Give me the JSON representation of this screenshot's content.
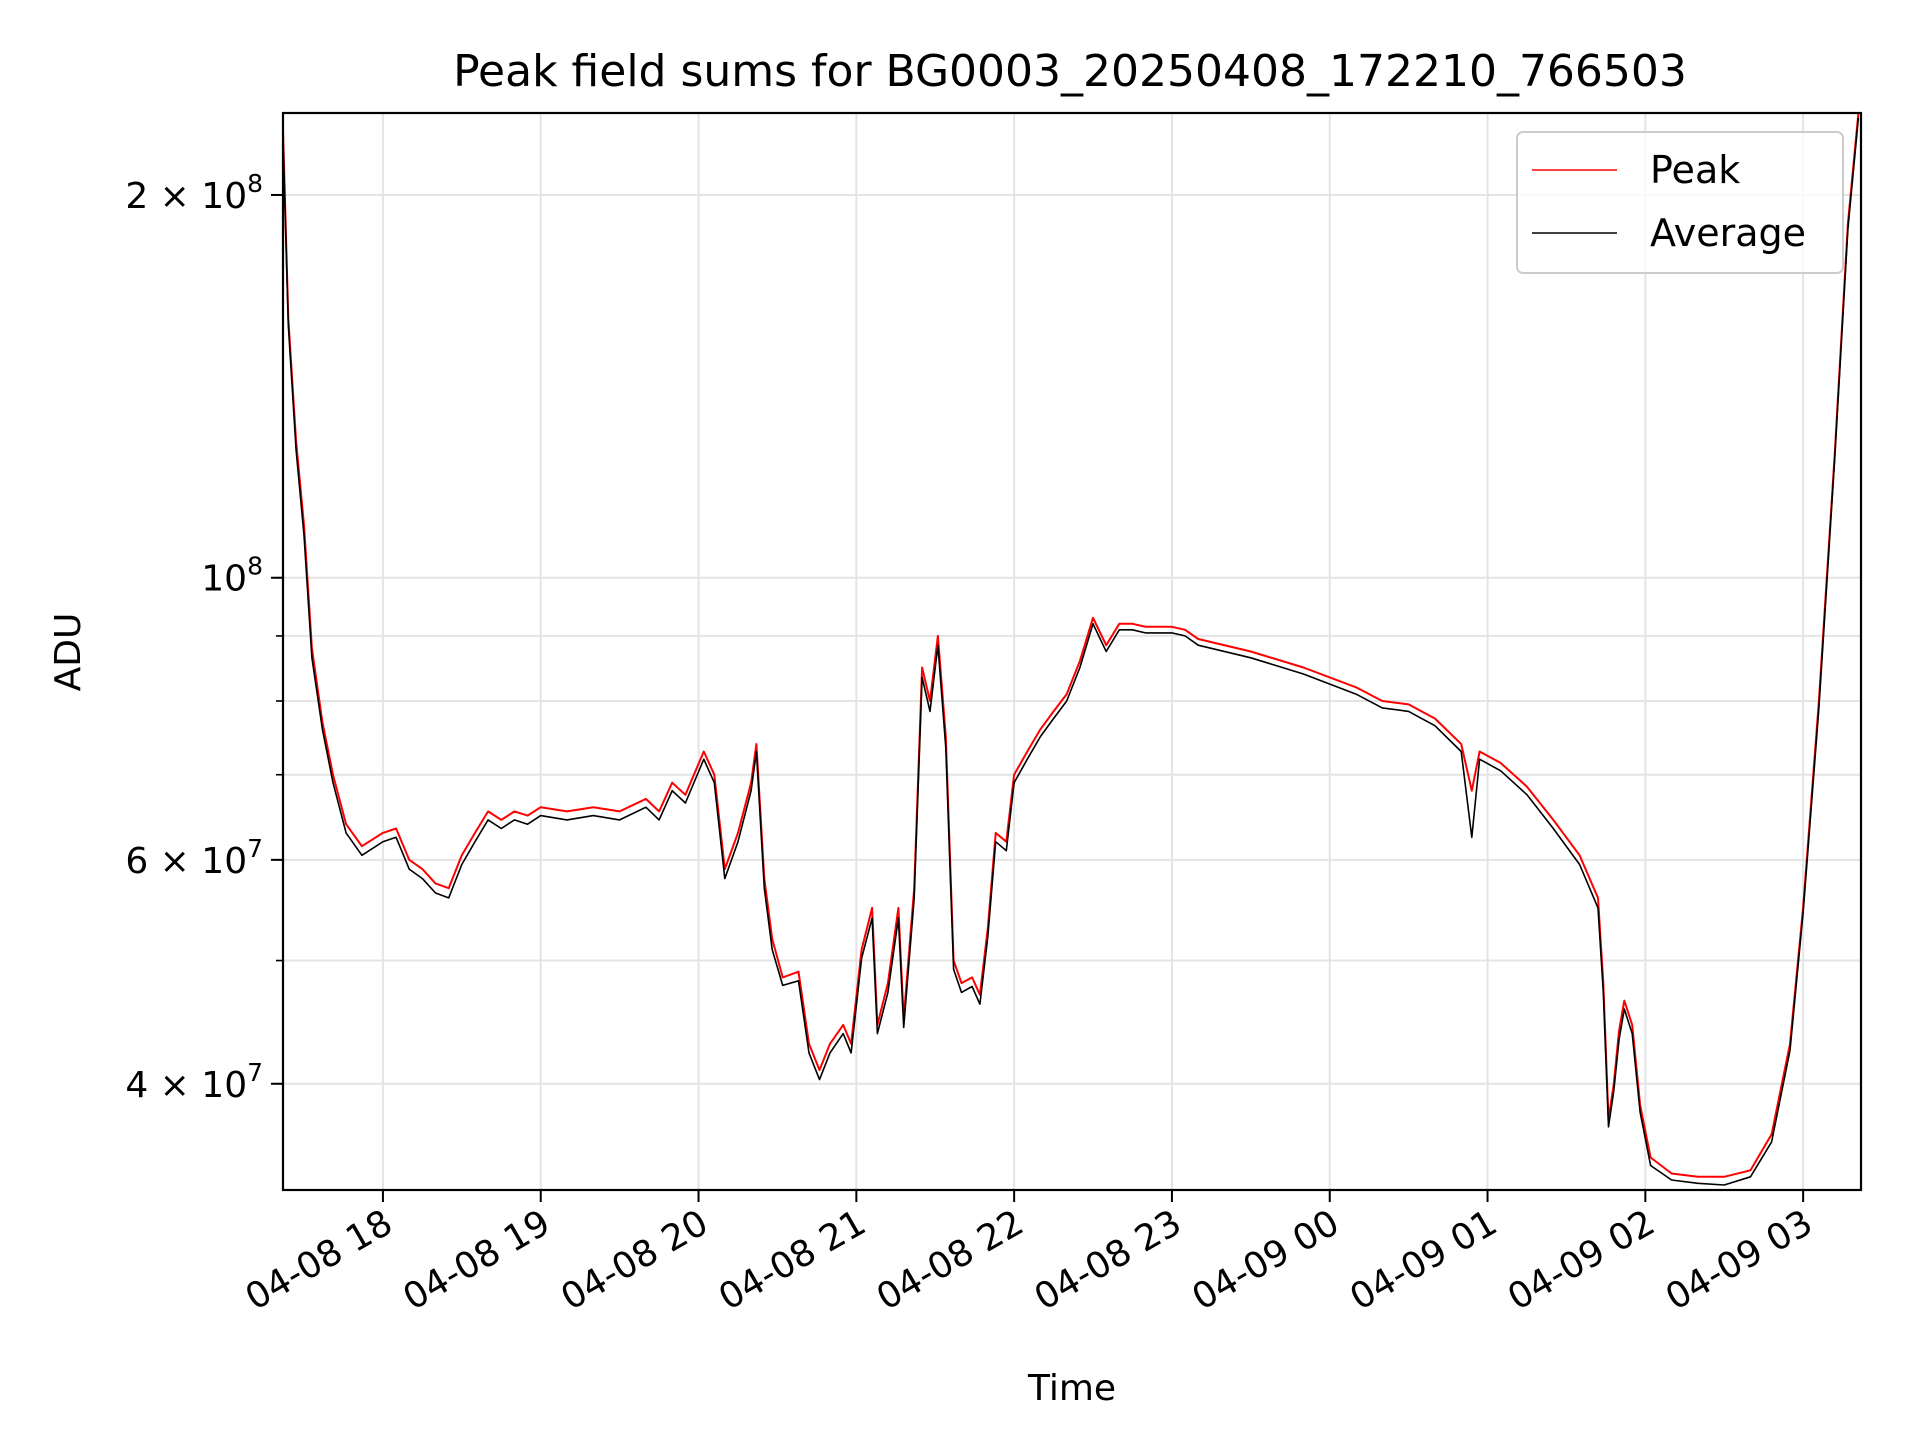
{
  "chart_data": {
    "type": "line",
    "title": "Peak field sums for BG0003_20250408_172210_766503",
    "xlabel": "Time",
    "ylabel": "ADU",
    "y_scale": "log",
    "ylim": [
      33000000,
      232000000
    ],
    "xlim": [
      "2025-04-08 17:22",
      "2025-04-09 03:22"
    ],
    "grid": true,
    "legend_position": "top-right",
    "y_major_ticks": [
      {
        "value": 40000000,
        "mant": "4",
        "exp": "7"
      },
      {
        "value": 60000000,
        "mant": "6",
        "exp": "7"
      },
      {
        "value": 100000000,
        "mant": "",
        "exp": "8"
      },
      {
        "value": 200000000,
        "mant": "2",
        "exp": "8"
      }
    ],
    "x_ticks": [
      {
        "value": "2025-04-08 18:00",
        "label": "04-08 18"
      },
      {
        "value": "2025-04-08 19:00",
        "label": "04-08 19"
      },
      {
        "value": "2025-04-08 20:00",
        "label": "04-08 20"
      },
      {
        "value": "2025-04-08 21:00",
        "label": "04-08 21"
      },
      {
        "value": "2025-04-08 22:00",
        "label": "04-08 22"
      },
      {
        "value": "2025-04-08 23:00",
        "label": "04-08 23"
      },
      {
        "value": "2025-04-09 00:00",
        "label": "04-09 00"
      },
      {
        "value": "2025-04-09 01:00",
        "label": "04-09 01"
      },
      {
        "value": "2025-04-09 02:00",
        "label": "04-09 02"
      },
      {
        "value": "2025-04-09 03:00",
        "label": "04-09 03"
      }
    ],
    "series": [
      {
        "name": "Peak",
        "color": "#ff0000",
        "points": [
          [
            "2025-04-08 17:22",
            225000000
          ],
          [
            "2025-04-08 17:24",
            160000000
          ],
          [
            "2025-04-08 17:27",
            128000000
          ],
          [
            "2025-04-08 17:30",
            110000000
          ],
          [
            "2025-04-08 17:33",
            88000000
          ],
          [
            "2025-04-08 17:37",
            77000000
          ],
          [
            "2025-04-08 17:41",
            70000000
          ],
          [
            "2025-04-08 17:46",
            64000000
          ],
          [
            "2025-04-08 17:52",
            61500000
          ],
          [
            "2025-04-08 18:00",
            63000000
          ],
          [
            "2025-04-08 18:05",
            63500000
          ],
          [
            "2025-04-08 18:10",
            60000000
          ],
          [
            "2025-04-08 18:15",
            59000000
          ],
          [
            "2025-04-08 18:20",
            57500000
          ],
          [
            "2025-04-08 18:25",
            57000000
          ],
          [
            "2025-04-08 18:30",
            60500000
          ],
          [
            "2025-04-08 18:35",
            63000000
          ],
          [
            "2025-04-08 18:40",
            65500000
          ],
          [
            "2025-04-08 18:45",
            64500000
          ],
          [
            "2025-04-08 18:50",
            65500000
          ],
          [
            "2025-04-08 18:55",
            65000000
          ],
          [
            "2025-04-08 19:00",
            66000000
          ],
          [
            "2025-04-08 19:10",
            65500000
          ],
          [
            "2025-04-08 19:20",
            66000000
          ],
          [
            "2025-04-08 19:30",
            65500000
          ],
          [
            "2025-04-08 19:40",
            67000000
          ],
          [
            "2025-04-08 19:45",
            65500000
          ],
          [
            "2025-04-08 19:50",
            69000000
          ],
          [
            "2025-04-08 19:55",
            67500000
          ],
          [
            "2025-04-08 20:02",
            73000000
          ],
          [
            "2025-04-08 20:06",
            70000000
          ],
          [
            "2025-04-08 20:10",
            59000000
          ],
          [
            "2025-04-08 20:15",
            63000000
          ],
          [
            "2025-04-08 20:20",
            69000000
          ],
          [
            "2025-04-08 20:22",
            74000000
          ],
          [
            "2025-04-08 20:25",
            58000000
          ],
          [
            "2025-04-08 20:28",
            52000000
          ],
          [
            "2025-04-08 20:32",
            48500000
          ],
          [
            "2025-04-08 20:38",
            49000000
          ],
          [
            "2025-04-08 20:42",
            43000000
          ],
          [
            "2025-04-08 20:46",
            41000000
          ],
          [
            "2025-04-08 20:50",
            43000000
          ],
          [
            "2025-04-08 20:55",
            44500000
          ],
          [
            "2025-04-08 20:58",
            43000000
          ],
          [
            "2025-04-08 21:02",
            51000000
          ],
          [
            "2025-04-08 21:06",
            55000000
          ],
          [
            "2025-04-08 21:08",
            44500000
          ],
          [
            "2025-04-08 21:12",
            48000000
          ],
          [
            "2025-04-08 21:16",
            55000000
          ],
          [
            "2025-04-08 21:18",
            45000000
          ],
          [
            "2025-04-08 21:22",
            57000000
          ],
          [
            "2025-04-08 21:25",
            85000000
          ],
          [
            "2025-04-08 21:28",
            80000000
          ],
          [
            "2025-04-08 21:31",
            90000000
          ],
          [
            "2025-04-08 21:34",
            75000000
          ],
          [
            "2025-04-08 21:37",
            50000000
          ],
          [
            "2025-04-08 21:40",
            48000000
          ],
          [
            "2025-04-08 21:44",
            48500000
          ],
          [
            "2025-04-08 21:47",
            47000000
          ],
          [
            "2025-04-08 21:50",
            53000000
          ],
          [
            "2025-04-08 21:53",
            63000000
          ],
          [
            "2025-04-08 21:57",
            62000000
          ],
          [
            "2025-04-08 22:00",
            70000000
          ],
          [
            "2025-04-08 22:05",
            73000000
          ],
          [
            "2025-04-08 22:10",
            76000000
          ],
          [
            "2025-04-08 22:15",
            78500000
          ],
          [
            "2025-04-08 22:20",
            81000000
          ],
          [
            "2025-04-08 22:25",
            86000000
          ],
          [
            "2025-04-08 22:30",
            93000000
          ],
          [
            "2025-04-08 22:35",
            88500000
          ],
          [
            "2025-04-08 22:40",
            92000000
          ],
          [
            "2025-04-08 22:45",
            92000000
          ],
          [
            "2025-04-08 22:50",
            91500000
          ],
          [
            "2025-04-08 22:55",
            91500000
          ],
          [
            "2025-04-08 23:00",
            91500000
          ],
          [
            "2025-04-08 23:05",
            91000000
          ],
          [
            "2025-04-08 23:10",
            89500000
          ],
          [
            "2025-04-08 23:30",
            87500000
          ],
          [
            "2025-04-08 23:50",
            85000000
          ],
          [
            "2025-04-09 00:10",
            82000000
          ],
          [
            "2025-04-09 00:20",
            80000000
          ],
          [
            "2025-04-09 00:30",
            79500000
          ],
          [
            "2025-04-09 00:40",
            77500000
          ],
          [
            "2025-04-09 00:50",
            74000000
          ],
          [
            "2025-04-09 00:54",
            68000000
          ],
          [
            "2025-04-09 00:57",
            73000000
          ],
          [
            "2025-04-09 01:05",
            71500000
          ],
          [
            "2025-04-09 01:15",
            68500000
          ],
          [
            "2025-04-09 01:25",
            64500000
          ],
          [
            "2025-04-09 01:35",
            60500000
          ],
          [
            "2025-04-09 01:42",
            56000000
          ],
          [
            "2025-04-09 01:44",
            48000000
          ],
          [
            "2025-04-09 01:46",
            37500000
          ],
          [
            "2025-04-09 01:48",
            40000000
          ],
          [
            "2025-04-09 01:50",
            44000000
          ],
          [
            "2025-04-09 01:52",
            46500000
          ],
          [
            "2025-04-09 01:55",
            44500000
          ],
          [
            "2025-04-09 01:58",
            38500000
          ],
          [
            "2025-04-09 02:02",
            35000000
          ],
          [
            "2025-04-09 02:10",
            34000000
          ],
          [
            "2025-04-09 02:20",
            33800000
          ],
          [
            "2025-04-09 02:30",
            33800000
          ],
          [
            "2025-04-09 02:40",
            34200000
          ],
          [
            "2025-04-09 02:48",
            36500000
          ],
          [
            "2025-04-09 02:55",
            43000000
          ],
          [
            "2025-04-09 03:00",
            55000000
          ],
          [
            "2025-04-09 03:06",
            80000000
          ],
          [
            "2025-04-09 03:12",
            125000000
          ],
          [
            "2025-04-09 03:17",
            190000000
          ],
          [
            "2025-04-09 03:21",
            232000000
          ]
        ]
      },
      {
        "name": "Average",
        "color": "#000000",
        "points": [
          [
            "2025-04-08 17:22",
            222000000
          ],
          [
            "2025-04-08 17:24",
            158000000
          ],
          [
            "2025-04-08 17:27",
            126000000
          ],
          [
            "2025-04-08 17:30",
            108000000
          ],
          [
            "2025-04-08 17:33",
            86500000
          ],
          [
            "2025-04-08 17:37",
            76000000
          ],
          [
            "2025-04-08 17:41",
            69000000
          ],
          [
            "2025-04-08 17:46",
            63000000
          ],
          [
            "2025-04-08 17:52",
            60500000
          ],
          [
            "2025-04-08 18:00",
            62000000
          ],
          [
            "2025-04-08 18:05",
            62500000
          ],
          [
            "2025-04-08 18:10",
            59000000
          ],
          [
            "2025-04-08 18:15",
            58000000
          ],
          [
            "2025-04-08 18:20",
            56500000
          ],
          [
            "2025-04-08 18:25",
            56000000
          ],
          [
            "2025-04-08 18:30",
            59500000
          ],
          [
            "2025-04-08 18:35",
            62000000
          ],
          [
            "2025-04-08 18:40",
            64500000
          ],
          [
            "2025-04-08 18:45",
            63500000
          ],
          [
            "2025-04-08 18:50",
            64500000
          ],
          [
            "2025-04-08 18:55",
            64000000
          ],
          [
            "2025-04-08 19:00",
            65000000
          ],
          [
            "2025-04-08 19:10",
            64500000
          ],
          [
            "2025-04-08 19:20",
            65000000
          ],
          [
            "2025-04-08 19:30",
            64500000
          ],
          [
            "2025-04-08 19:40",
            66000000
          ],
          [
            "2025-04-08 19:45",
            64500000
          ],
          [
            "2025-04-08 19:50",
            68000000
          ],
          [
            "2025-04-08 19:55",
            66500000
          ],
          [
            "2025-04-08 20:02",
            72000000
          ],
          [
            "2025-04-08 20:06",
            69000000
          ],
          [
            "2025-04-08 20:10",
            58000000
          ],
          [
            "2025-04-08 20:15",
            62000000
          ],
          [
            "2025-04-08 20:20",
            68000000
          ],
          [
            "2025-04-08 20:22",
            73000000
          ],
          [
            "2025-04-08 20:25",
            57000000
          ],
          [
            "2025-04-08 20:28",
            51000000
          ],
          [
            "2025-04-08 20:32",
            47800000
          ],
          [
            "2025-04-08 20:38",
            48200000
          ],
          [
            "2025-04-08 20:42",
            42300000
          ],
          [
            "2025-04-08 20:46",
            40300000
          ],
          [
            "2025-04-08 20:50",
            42300000
          ],
          [
            "2025-04-08 20:55",
            43800000
          ],
          [
            "2025-04-08 20:58",
            42300000
          ],
          [
            "2025-04-08 21:02",
            50200000
          ],
          [
            "2025-04-08 21:06",
            54000000
          ],
          [
            "2025-04-08 21:08",
            43800000
          ],
          [
            "2025-04-08 21:12",
            47200000
          ],
          [
            "2025-04-08 21:16",
            54000000
          ],
          [
            "2025-04-08 21:18",
            44300000
          ],
          [
            "2025-04-08 21:22",
            56000000
          ],
          [
            "2025-04-08 21:25",
            83500000
          ],
          [
            "2025-04-08 21:28",
            78500000
          ],
          [
            "2025-04-08 21:31",
            88500000
          ],
          [
            "2025-04-08 21:34",
            73500000
          ],
          [
            "2025-04-08 21:37",
            49200000
          ],
          [
            "2025-04-08 21:40",
            47200000
          ],
          [
            "2025-04-08 21:44",
            47700000
          ],
          [
            "2025-04-08 21:47",
            46200000
          ],
          [
            "2025-04-08 21:50",
            52200000
          ],
          [
            "2025-04-08 21:53",
            62000000
          ],
          [
            "2025-04-08 21:57",
            61000000
          ],
          [
            "2025-04-08 22:00",
            69000000
          ],
          [
            "2025-04-08 22:05",
            72000000
          ],
          [
            "2025-04-08 22:10",
            75000000
          ],
          [
            "2025-04-08 22:15",
            77500000
          ],
          [
            "2025-04-08 22:20",
            80000000
          ],
          [
            "2025-04-08 22:25",
            85000000
          ],
          [
            "2025-04-08 22:30",
            92000000
          ],
          [
            "2025-04-08 22:35",
            87500000
          ],
          [
            "2025-04-08 22:40",
            91000000
          ],
          [
            "2025-04-08 22:45",
            91000000
          ],
          [
            "2025-04-08 22:50",
            90500000
          ],
          [
            "2025-04-08 22:55",
            90500000
          ],
          [
            "2025-04-08 23:00",
            90500000
          ],
          [
            "2025-04-08 23:05",
            90000000
          ],
          [
            "2025-04-08 23:10",
            88500000
          ],
          [
            "2025-04-08 23:30",
            86500000
          ],
          [
            "2025-04-08 23:50",
            84000000
          ],
          [
            "2025-04-09 00:10",
            81000000
          ],
          [
            "2025-04-09 00:20",
            79000000
          ],
          [
            "2025-04-09 00:30",
            78500000
          ],
          [
            "2025-04-09 00:40",
            76500000
          ],
          [
            "2025-04-09 00:50",
            73000000
          ],
          [
            "2025-04-09 00:54",
            62500000
          ],
          [
            "2025-04-09 00:57",
            72000000
          ],
          [
            "2025-04-09 01:05",
            70500000
          ],
          [
            "2025-04-09 01:15",
            67500000
          ],
          [
            "2025-04-09 01:25",
            63500000
          ],
          [
            "2025-04-09 01:35",
            59500000
          ],
          [
            "2025-04-09 01:42",
            55000000
          ],
          [
            "2025-04-09 01:44",
            47200000
          ],
          [
            "2025-04-09 01:46",
            37000000
          ],
          [
            "2025-04-09 01:48",
            39500000
          ],
          [
            "2025-04-09 01:50",
            43300000
          ],
          [
            "2025-04-09 01:52",
            45800000
          ],
          [
            "2025-04-09 01:55",
            43800000
          ],
          [
            "2025-04-09 01:58",
            38000000
          ],
          [
            "2025-04-09 02:02",
            34500000
          ],
          [
            "2025-04-09 02:10",
            33600000
          ],
          [
            "2025-04-09 02:20",
            33400000
          ],
          [
            "2025-04-09 02:30",
            33300000
          ],
          [
            "2025-04-09 02:40",
            33800000
          ],
          [
            "2025-04-09 02:48",
            36000000
          ],
          [
            "2025-04-09 02:55",
            42500000
          ],
          [
            "2025-04-09 03:00",
            54500000
          ],
          [
            "2025-04-09 03:06",
            79000000
          ],
          [
            "2025-04-09 03:12",
            124000000
          ],
          [
            "2025-04-09 03:17",
            188000000
          ],
          [
            "2025-04-09 03:21",
            230000000
          ]
        ]
      }
    ]
  }
}
